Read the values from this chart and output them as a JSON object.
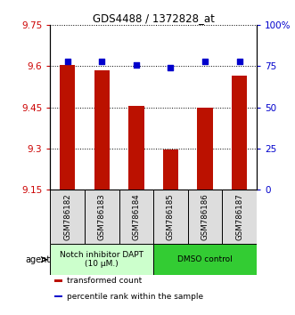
{
  "title": "GDS4488 / 1372828_at",
  "categories": [
    "GSM786182",
    "GSM786183",
    "GSM786184",
    "GSM786185",
    "GSM786186",
    "GSM786187"
  ],
  "bar_values": [
    9.605,
    9.585,
    9.455,
    9.295,
    9.45,
    9.565
  ],
  "percentile_values": [
    78,
    78,
    76,
    74,
    78,
    78
  ],
  "ylim_left": [
    9.15,
    9.75
  ],
  "ylim_right": [
    0,
    100
  ],
  "yticks_left": [
    9.15,
    9.3,
    9.45,
    9.6,
    9.75
  ],
  "yticks_right": [
    0,
    25,
    50,
    75,
    100
  ],
  "ytick_labels_left": [
    "9.15",
    "9.3",
    "9.45",
    "9.6",
    "9.75"
  ],
  "ytick_labels_right": [
    "0",
    "25",
    "50",
    "75",
    "100%"
  ],
  "bar_color": "#bb1100",
  "dot_color": "#0000cc",
  "agent_groups": [
    {
      "label": "Notch inhibitor DAPT\n(10 μM.)",
      "color": "#ccffcc",
      "span": [
        0,
        3
      ]
    },
    {
      "label": "DMSO control",
      "color": "#33cc33",
      "span": [
        3,
        6
      ]
    }
  ],
  "legend_items": [
    {
      "color": "#bb1100",
      "label": "transformed count"
    },
    {
      "color": "#0000cc",
      "label": "percentile rank within the sample"
    }
  ],
  "agent_label": "agent",
  "background_color": "#ffffff",
  "bar_width": 0.45,
  "tick_box_color": "#dddddd"
}
